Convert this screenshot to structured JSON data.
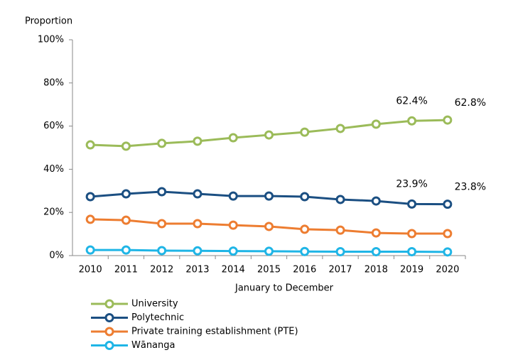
{
  "chart_data": {
    "type": "line",
    "y_axis_label": "Proportion",
    "x_axis_label": "January to December",
    "categories": [
      "2010",
      "2011",
      "2012",
      "2013",
      "2014",
      "2015",
      "2016",
      "2017",
      "2018",
      "2019",
      "2020"
    ],
    "series": [
      {
        "name": "University",
        "color": "#9bbb59",
        "values": [
          51.3,
          50.7,
          52.0,
          53.0,
          54.6,
          55.9,
          57.2,
          58.9,
          60.9,
          62.4,
          62.8
        ],
        "value_labels": [
          null,
          null,
          null,
          null,
          null,
          null,
          null,
          null,
          null,
          "62.4%",
          "62.8%"
        ]
      },
      {
        "name": "Polytechnic",
        "color": "#1b4f82",
        "values": [
          27.3,
          28.6,
          29.6,
          28.6,
          27.6,
          27.6,
          27.3,
          26.0,
          25.3,
          23.9,
          23.8
        ],
        "value_labels": [
          null,
          null,
          null,
          null,
          null,
          null,
          null,
          null,
          null,
          "23.9%",
          "23.8%"
        ]
      },
      {
        "name": "Private training establishment (PTE)",
        "color": "#ed7d31",
        "values": [
          16.8,
          16.4,
          14.8,
          14.8,
          14.1,
          13.5,
          12.2,
          11.8,
          10.5,
          10.2,
          10.2
        ]
      },
      {
        "name": "Wānanga",
        "color": "#1fb5e6",
        "values": [
          2.6,
          2.6,
          2.3,
          2.2,
          2.1,
          2.0,
          1.9,
          1.8,
          1.8,
          1.8,
          1.7
        ]
      }
    ],
    "ylim": [
      0,
      100
    ],
    "yticks": [
      {
        "value": 0,
        "label": "0%"
      },
      {
        "value": 20,
        "label": "20%"
      },
      {
        "value": 40,
        "label": "40%"
      },
      {
        "value": 60,
        "label": "60%"
      },
      {
        "value": 80,
        "label": "80%"
      },
      {
        "value": 100,
        "label": "100%"
      }
    ],
    "grid": false,
    "legend": "bottom"
  }
}
